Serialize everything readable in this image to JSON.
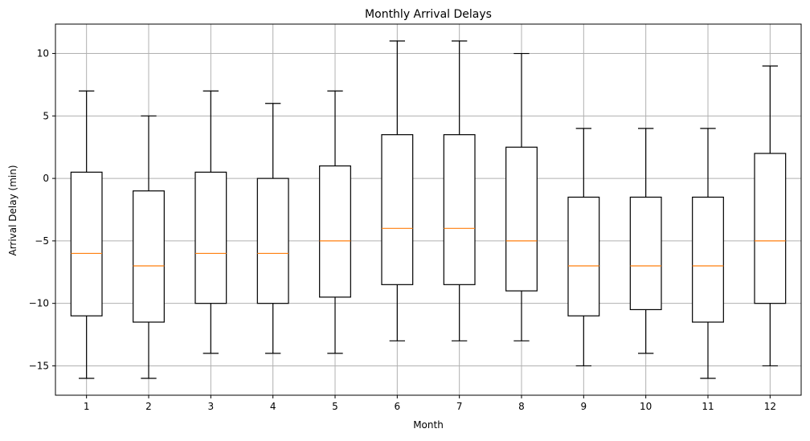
{
  "chart_data": {
    "type": "boxplot",
    "title": "Monthly Arrival Delays",
    "xlabel": "Month",
    "ylabel": "Arrival Delay (min)",
    "categories": [
      "1",
      "2",
      "3",
      "4",
      "5",
      "6",
      "7",
      "8",
      "9",
      "10",
      "11",
      "12"
    ],
    "boxes": [
      {
        "category": "1",
        "whisker_low": -16,
        "q1": -11,
        "median": -6,
        "q3": 0.5,
        "whisker_high": 7
      },
      {
        "category": "2",
        "whisker_low": -16,
        "q1": -11.5,
        "median": -7,
        "q3": -1,
        "whisker_high": 5
      },
      {
        "category": "3",
        "whisker_low": -14,
        "q1": -10,
        "median": -6,
        "q3": 0.5,
        "whisker_high": 7
      },
      {
        "category": "4",
        "whisker_low": -14,
        "q1": -10,
        "median": -6,
        "q3": 0,
        "whisker_high": 6
      },
      {
        "category": "5",
        "whisker_low": -14,
        "q1": -9.5,
        "median": -5,
        "q3": 1,
        "whisker_high": 7
      },
      {
        "category": "6",
        "whisker_low": -13,
        "q1": -8.5,
        "median": -4,
        "q3": 3.5,
        "whisker_high": 11
      },
      {
        "category": "7",
        "whisker_low": -13,
        "q1": -8.5,
        "median": -4,
        "q3": 3.5,
        "whisker_high": 11
      },
      {
        "category": "8",
        "whisker_low": -13,
        "q1": -9,
        "median": -5,
        "q3": 2.5,
        "whisker_high": 10
      },
      {
        "category": "9",
        "whisker_low": -15,
        "q1": -11,
        "median": -7,
        "q3": -1.5,
        "whisker_high": 4
      },
      {
        "category": "10",
        "whisker_low": -14,
        "q1": -10.5,
        "median": -7,
        "q3": -1.5,
        "whisker_high": 4
      },
      {
        "category": "11",
        "whisker_low": -16,
        "q1": -11.5,
        "median": -7,
        "q3": -1.5,
        "whisker_high": 4
      },
      {
        "category": "12",
        "whisker_low": -15,
        "q1": -10,
        "median": -5,
        "q3": 2,
        "whisker_high": 9
      }
    ],
    "ylim": [
      -17.35,
      12.35
    ],
    "yticks": [
      -15,
      -10,
      -5,
      0,
      5,
      10
    ],
    "grid": true,
    "colors": {
      "box": "#000000",
      "median": "#ff7f0e",
      "grid": "#b0b0b0"
    }
  }
}
